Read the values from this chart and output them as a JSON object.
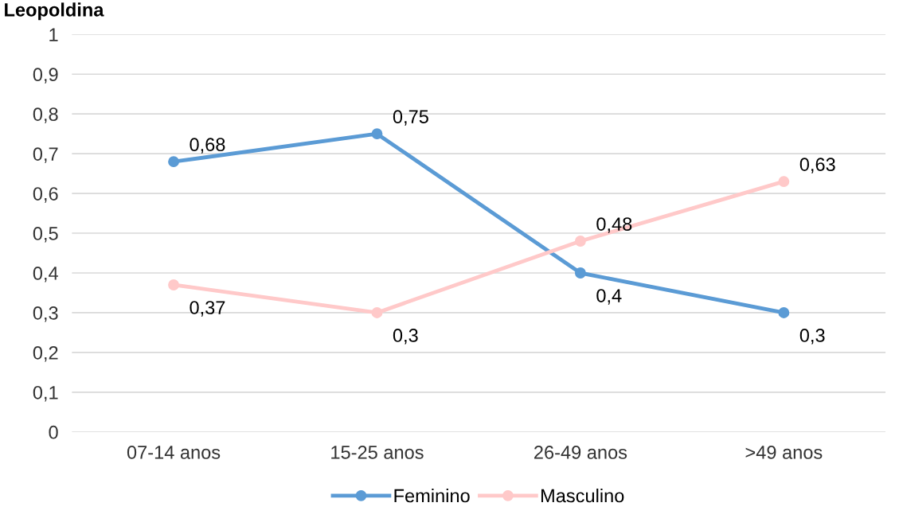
{
  "chart_data": {
    "type": "line",
    "title": "Leopoldina",
    "categories": [
      "07-14 anos",
      "15-25 anos",
      "26-49 anos",
      ">49 anos"
    ],
    "series": [
      {
        "name": "Feminino",
        "color": "#5b9bd5",
        "values": [
          0.68,
          0.75,
          0.4,
          0.3
        ],
        "value_labels": [
          "0,68",
          "0,75",
          "0,4",
          "0,3"
        ]
      },
      {
        "name": "Masculino",
        "color": "#ffc9c9",
        "values": [
          0.37,
          0.3,
          0.48,
          0.63
        ],
        "value_labels": [
          "0,37",
          "0,3",
          "0,48",
          "0,63"
        ]
      }
    ],
    "ylim": [
      0,
      1
    ],
    "yticks": [
      {
        "value": 0,
        "label": "0"
      },
      {
        "value": 0.1,
        "label": "0,1"
      },
      {
        "value": 0.2,
        "label": "0,2"
      },
      {
        "value": 0.3,
        "label": "0,3"
      },
      {
        "value": 0.4,
        "label": "0,4"
      },
      {
        "value": 0.5,
        "label": "0,5"
      },
      {
        "value": 0.6,
        "label": "0,6"
      },
      {
        "value": 0.7,
        "label": "0,7"
      },
      {
        "value": 0.8,
        "label": "0,8"
      },
      {
        "value": 0.9,
        "label": "0,9"
      },
      {
        "value": 1,
        "label": "1"
      }
    ],
    "grid": "y",
    "legend": "bottom",
    "marker": "circle",
    "line_style": "solid"
  }
}
